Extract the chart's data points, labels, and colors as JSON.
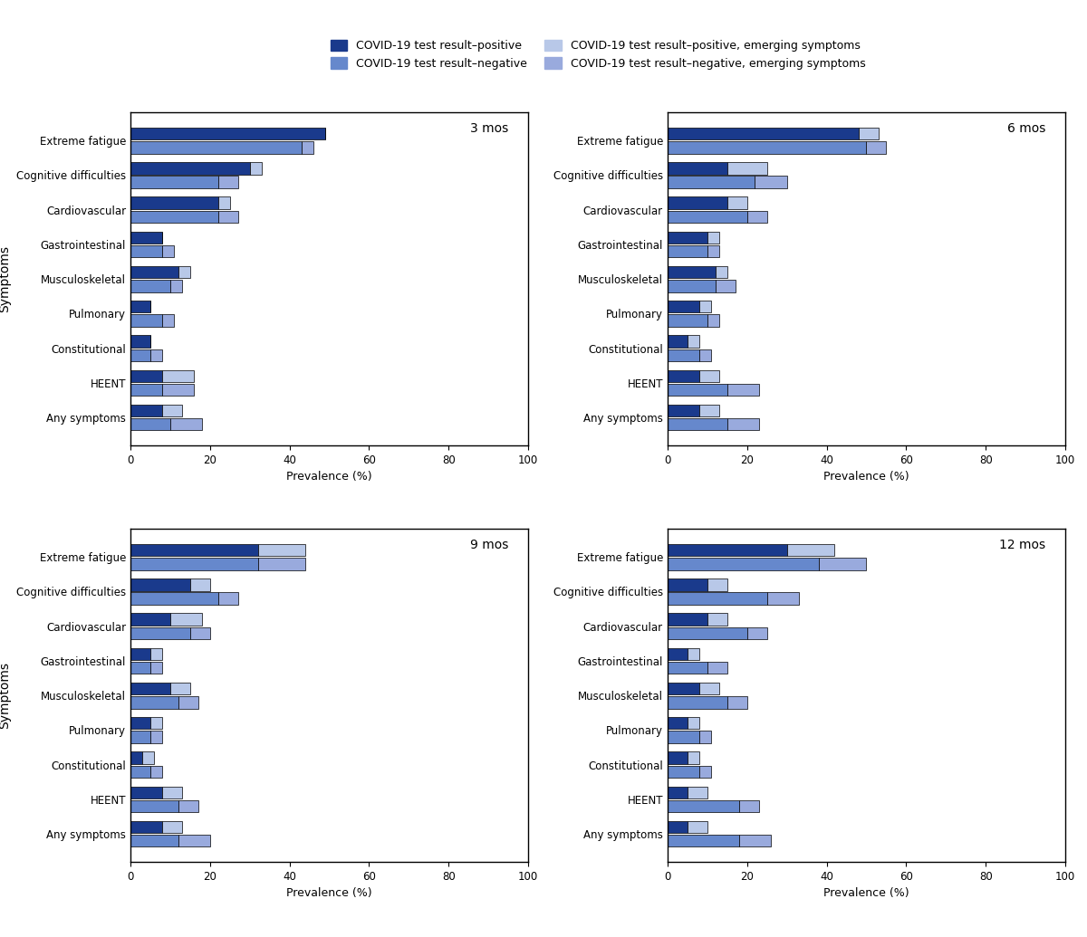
{
  "panels": [
    {
      "title": "3 mos",
      "pos_primary": [
        49,
        30,
        22,
        8,
        12,
        5,
        5,
        8,
        8
      ],
      "pos_emerging": [
        0,
        3,
        3,
        0,
        3,
        0,
        0,
        8,
        5
      ],
      "neg_primary": [
        43,
        22,
        22,
        8,
        10,
        8,
        5,
        8,
        10
      ],
      "neg_emerging": [
        3,
        5,
        5,
        3,
        3,
        3,
        3,
        8,
        8
      ]
    },
    {
      "title": "6 mos",
      "pos_primary": [
        48,
        15,
        15,
        10,
        12,
        8,
        5,
        8,
        8
      ],
      "pos_emerging": [
        5,
        10,
        5,
        3,
        3,
        3,
        3,
        5,
        5
      ],
      "neg_primary": [
        50,
        22,
        20,
        10,
        12,
        10,
        8,
        15,
        15
      ],
      "neg_emerging": [
        5,
        8,
        5,
        3,
        5,
        3,
        3,
        8,
        8
      ]
    },
    {
      "title": "9 mos",
      "pos_primary": [
        32,
        15,
        10,
        5,
        10,
        5,
        3,
        8,
        8
      ],
      "pos_emerging": [
        12,
        5,
        8,
        3,
        5,
        3,
        3,
        5,
        5
      ],
      "neg_primary": [
        32,
        22,
        15,
        5,
        12,
        5,
        5,
        12,
        12
      ],
      "neg_emerging": [
        12,
        5,
        5,
        3,
        5,
        3,
        3,
        5,
        8
      ]
    },
    {
      "title": "12 mos",
      "pos_primary": [
        30,
        10,
        10,
        5,
        8,
        5,
        5,
        5,
        5
      ],
      "pos_emerging": [
        12,
        5,
        5,
        3,
        5,
        3,
        3,
        5,
        5
      ],
      "neg_primary": [
        38,
        25,
        20,
        10,
        15,
        8,
        8,
        18,
        18
      ],
      "neg_emerging": [
        12,
        8,
        5,
        5,
        5,
        3,
        3,
        5,
        8
      ]
    }
  ],
  "categories": [
    "Any symptoms",
    "HEENT",
    "Constitutional",
    "Pulmonary",
    "Musculoskeletal",
    "Gastrointestinal",
    "Cardiovascular",
    "Cognitive difficulties",
    "Extreme fatigue"
  ],
  "color_pos_primary": "#1a3a8c",
  "color_pos_emerging": "#b8c8e8",
  "color_neg_primary": "#6688cc",
  "color_neg_emerging": "#99aadd",
  "xlim": [
    0,
    100
  ],
  "xlabel": "Prevalence (%)",
  "ylabel": "Symptoms",
  "xticks": [
    0,
    20,
    40,
    60,
    80,
    100
  ],
  "legend_labels": [
    "COVID-19 test result–positive",
    "COVID-19 test result–negative",
    "COVID-19 test result–positive, emerging symptoms",
    "COVID-19 test result–negative, emerging symptoms"
  ]
}
